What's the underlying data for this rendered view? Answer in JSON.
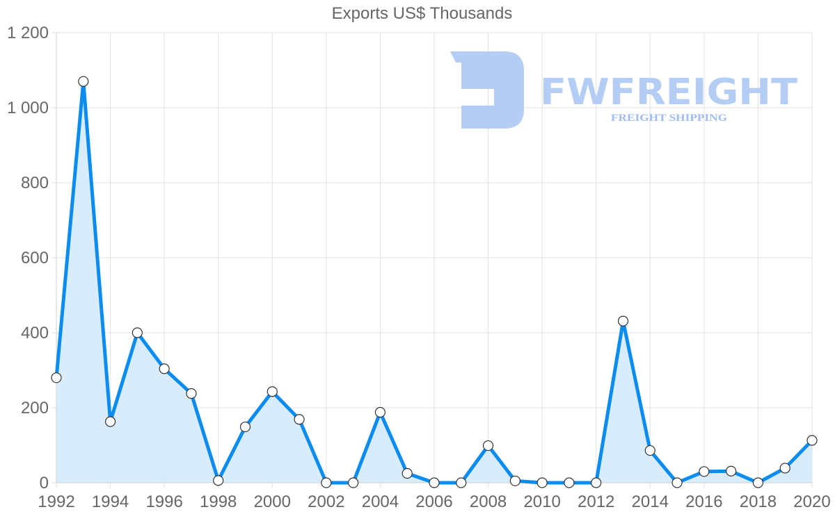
{
  "chart_data": {
    "type": "line",
    "title": "Exports US$ Thousands",
    "xlabel": "",
    "ylabel": "",
    "x": [
      1992,
      1993,
      1994,
      1995,
      1996,
      1997,
      1998,
      1999,
      2000,
      2001,
      2002,
      2003,
      2004,
      2005,
      2006,
      2007,
      2008,
      2009,
      2010,
      2011,
      2012,
      2013,
      2014,
      2015,
      2016,
      2017,
      2018,
      2019,
      2020
    ],
    "series": [
      {
        "name": "Exports US$ Thousands",
        "values": [
          280,
          1070,
          163,
          400,
          304,
          238,
          6,
          149,
          243,
          169,
          0,
          0,
          188,
          25,
          0,
          0,
          99,
          5,
          0,
          0,
          0,
          431,
          86,
          0,
          30,
          31,
          0,
          39,
          113
        ],
        "color": "#0a8cf0",
        "fill": "#d9ecfc",
        "marker": "circle-white"
      }
    ],
    "xticks": [
      "1992",
      "1994",
      "1996",
      "1998",
      "2000",
      "2002",
      "2004",
      "2006",
      "2008",
      "2010",
      "2012",
      "2014",
      "2016",
      "2018",
      "2020"
    ],
    "yticks": [
      "0",
      "200",
      "400",
      "600",
      "800",
      "1 000",
      "1 200"
    ],
    "ylim": [
      0,
      1200
    ],
    "xlim": [
      1992,
      2020
    ],
    "grid": true,
    "legend": null,
    "filled_area": true
  },
  "watermark": {
    "brand": "FWFREIGHT",
    "tagline": "FREIGHT SHIPPING",
    "color": "#b4cdf4"
  }
}
